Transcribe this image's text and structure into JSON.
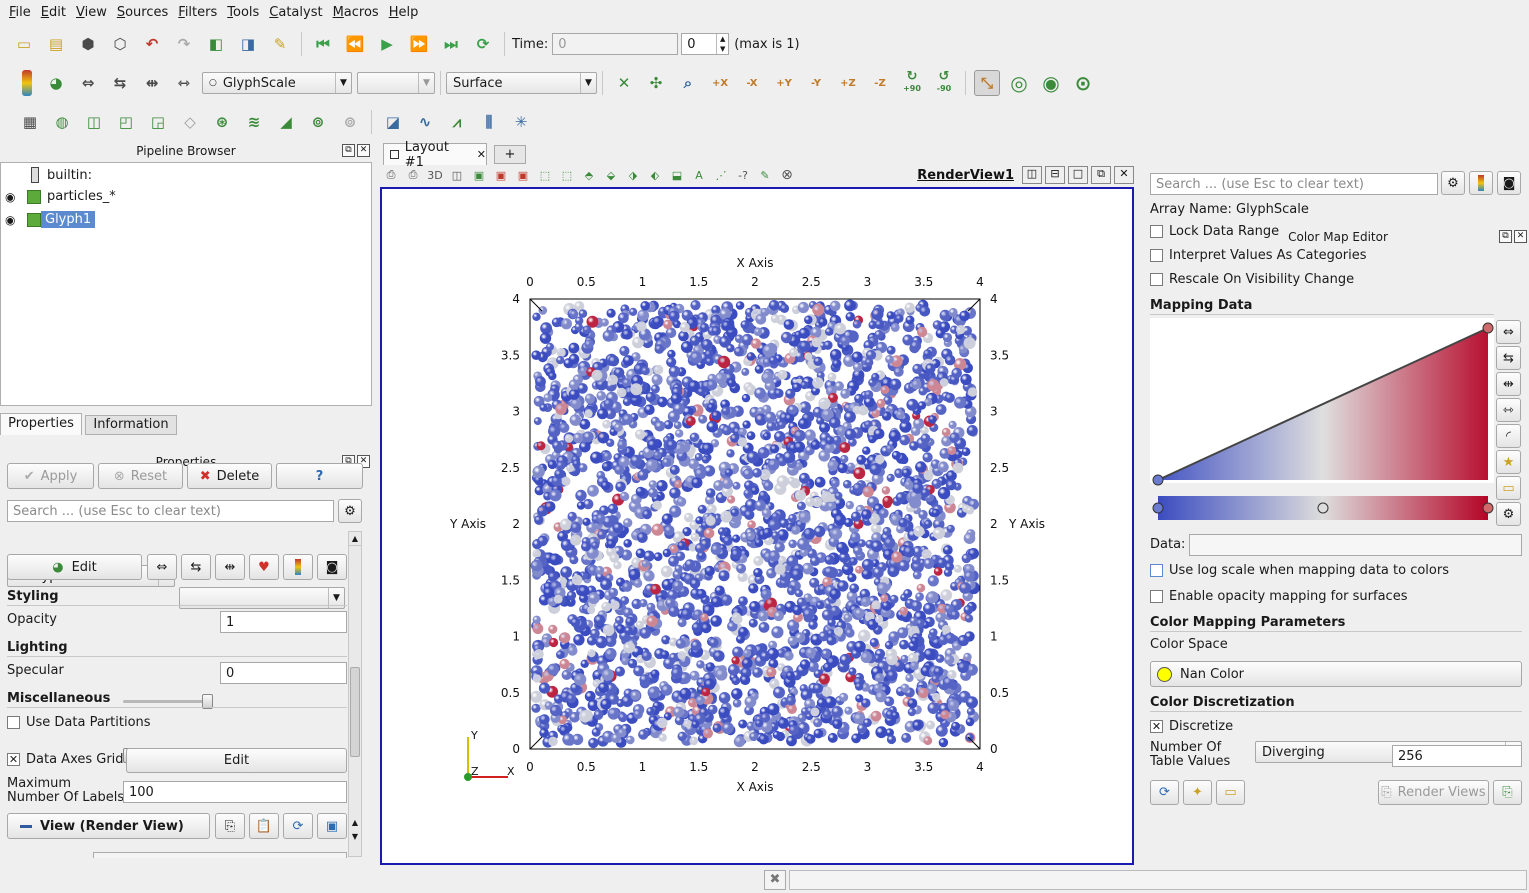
{
  "menu": [
    "File",
    "Edit",
    "View",
    "Sources",
    "Filters",
    "Tools",
    "Catalyst",
    "Macros",
    "Help"
  ],
  "toolbar": {
    "time_label": "Time:",
    "time_value": "0",
    "time_step": "0",
    "max_label": "(max is 1)",
    "color_array": "GlyphScale",
    "component": "",
    "representation": "Surface",
    "rot_plus": "+90",
    "rot_minus": "-90"
  },
  "pipeline": {
    "title": "Pipeline Browser",
    "items": [
      "builtin:",
      "particles_*",
      "Glyph1"
    ]
  },
  "properties": {
    "tabs": [
      "Properties",
      "Information"
    ],
    "title": "Properties",
    "apply": "Apply",
    "reset": "Reset",
    "delete": "Delete",
    "help": "?",
    "search_placeholder": "Search ... (use Esc to clear text)",
    "coloring": "GlyphScale",
    "edit": "Edit",
    "styling": "Styling",
    "opacity_label": "Opacity",
    "opacity_value": "1",
    "opacity_level": 1.0,
    "lighting": "Lighting",
    "specular_label": "Specular",
    "specular_value": "0",
    "specular_level": 0.0,
    "misc": "Miscellaneous",
    "use_partitions": "Use Data Partitions",
    "axes_grid": "Data Axes Grid",
    "axes_edit": "Edit",
    "max_labels_1": "Maximum",
    "max_labels_2": "Number Of Labels",
    "max_labels_value": "100",
    "view_section": "View (Render View)"
  },
  "layout": {
    "tab": "Layout #1",
    "add_tab": "+",
    "view_title": "RenderView1",
    "three_d": "3D"
  },
  "chart_data": {
    "type": "scatter",
    "xlabel": "X Axis",
    "ylabel": "Y Axis",
    "xlim": [
      0,
      4
    ],
    "ylim": [
      0,
      4
    ],
    "x_ticks": [
      "0",
      "0.5",
      "1",
      "1.5",
      "2",
      "2.5",
      "3",
      "3.5",
      "4"
    ],
    "y_ticks": [
      "0",
      "0.5",
      "1",
      "1.5",
      "2",
      "2.5",
      "3",
      "3.5",
      "4"
    ],
    "triad": {
      "y": "Y",
      "z": "Z",
      "x": "X"
    },
    "colormap": [
      "#3b4cc0",
      "#dddddd",
      "#b40426"
    ]
  },
  "color_map": {
    "title": "Color Map Editor",
    "search_placeholder": "Search ... (use Esc to clear text)",
    "array_name": "Array Name: GlyphScale",
    "lock_range": "Lock Data Range",
    "interpret_cat": "Interpret Values As Categories",
    "rescale_vis": "Rescale On Visibility Change",
    "mapping_data": "Mapping Data",
    "data_label": "Data:",
    "log_scale": "Use log scale when mapping data to colors",
    "opacity_mapping": "Enable opacity mapping for surfaces",
    "params": "Color Mapping Parameters",
    "color_space_label": "Color Space",
    "color_space": "Diverging",
    "nan_color": "Nan Color",
    "discretization": "Color Discretization",
    "discretize": "Discretize",
    "num_values_1": "Number Of",
    "num_values_2": "Table Values",
    "num_values": "256",
    "num_values_level": 0.2,
    "render_views": "Render Views"
  }
}
